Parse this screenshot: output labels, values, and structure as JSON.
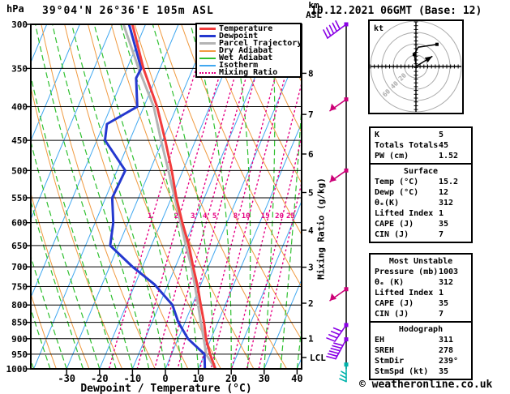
{
  "header": {
    "pressure_unit": "hPa",
    "title": "39°04'N 26°36'E 105m ASL",
    "date": "10.12.2021 06GMT (Base: 12)",
    "alt_unit_1": "km",
    "alt_unit_2": "ASL"
  },
  "legend": {
    "items": [
      {
        "label": "Temperature",
        "color_key": "temperature",
        "dash": "solid",
        "thick": true
      },
      {
        "label": "Dewpoint",
        "color_key": "dewpoint",
        "dash": "solid",
        "thick": true
      },
      {
        "label": "Parcel Trajectory",
        "color_key": "parcel",
        "dash": "solid",
        "thick": true
      },
      {
        "label": "Dry Adiabat",
        "color_key": "dry_adiabat",
        "dash": "solid",
        "thick": false
      },
      {
        "label": "Wet Adiabat",
        "color_key": "wet_adiabat",
        "dash": "solid",
        "thick": false
      },
      {
        "label": "Isotherm",
        "color_key": "isotherm",
        "dash": "solid",
        "thick": false
      },
      {
        "label": "Mixing Ratio",
        "color_key": "mixing_ratio",
        "dash": "dotted",
        "thick": false
      }
    ]
  },
  "axes": {
    "xlabel": "Dewpoint / Temperature (°C)",
    "mixing_axis_label": "Mixing Ratio (g/kg)",
    "lcl_label": "LCL"
  },
  "chart_data": {
    "type": "skewt-logp",
    "pressure_range_hpa": [
      300,
      1000
    ],
    "pressure_ticks_hpa": [
      300,
      350,
      400,
      450,
      500,
      550,
      600,
      650,
      700,
      750,
      800,
      850,
      900,
      950,
      1000
    ],
    "temp_ticks_c": [
      -30,
      -20,
      -10,
      0,
      10,
      20,
      30,
      40
    ],
    "km_asl_ticks": [
      {
        "km": 8,
        "hpa": 356
      },
      {
        "km": 7,
        "hpa": 411
      },
      {
        "km": 6,
        "hpa": 472
      },
      {
        "km": 5,
        "hpa": 540
      },
      {
        "km": 4,
        "hpa": 616
      },
      {
        "km": 3,
        "hpa": 701
      },
      {
        "km": 2,
        "hpa": 795
      },
      {
        "km": 1,
        "hpa": 899
      }
    ],
    "lcl_hpa": 961,
    "mixing_ratio_gkg": [
      1,
      2,
      3,
      4,
      5,
      8,
      10,
      15,
      20,
      25
    ],
    "isotherm_step_c": 10,
    "dry_adiabat_step_k": 10,
    "wet_adiabat_step_c": 5,
    "series": {
      "temperature_c": [
        [
          1000,
          15.2
        ],
        [
          950,
          11.7
        ],
        [
          900,
          8.5
        ],
        [
          850,
          5.8
        ],
        [
          800,
          2.6
        ],
        [
          750,
          -0.7
        ],
        [
          700,
          -4.6
        ],
        [
          650,
          -8.6
        ],
        [
          600,
          -13.5
        ],
        [
          550,
          -18.5
        ],
        [
          500,
          -23.4
        ],
        [
          450,
          -29.2
        ],
        [
          400,
          -36
        ],
        [
          350,
          -45
        ],
        [
          300,
          -54
        ]
      ],
      "dewpoint_c": [
        [
          1000,
          12
        ],
        [
          950,
          10
        ],
        [
          900,
          3
        ],
        [
          850,
          -2
        ],
        [
          800,
          -6
        ],
        [
          745,
          -14
        ],
        [
          700,
          -23
        ],
        [
          650,
          -32.5
        ],
        [
          600,
          -34.5
        ],
        [
          550,
          -38
        ],
        [
          500,
          -37.5
        ],
        [
          450,
          -47.5
        ],
        [
          425,
          -49
        ],
        [
          400,
          -42
        ],
        [
          362,
          -46
        ],
        [
          350,
          -45.7
        ],
        [
          300,
          -55
        ]
      ],
      "parcel_c": [
        [
          1000,
          15.2
        ],
        [
          950,
          10.5
        ],
        [
          900,
          7.8
        ],
        [
          850,
          4.8
        ],
        [
          800,
          1.8
        ],
        [
          750,
          -1.5
        ],
        [
          700,
          -5.1
        ],
        [
          650,
          -9.5
        ],
        [
          600,
          -14
        ],
        [
          550,
          -19
        ],
        [
          500,
          -24.4
        ],
        [
          450,
          -30.5
        ],
        [
          400,
          -37
        ],
        [
          350,
          -46.5
        ],
        [
          300,
          -56.7
        ]
      ]
    },
    "wind_barbs": [
      {
        "hpa": 300,
        "style": "feathers-5",
        "color_key": "barb_violet"
      },
      {
        "hpa": 390,
        "style": "pennant",
        "color_key": "barb_magenta"
      },
      {
        "hpa": 500,
        "style": "pennant",
        "color_key": "barb_magenta"
      },
      {
        "hpa": 757,
        "style": "pennant",
        "color_key": "barb_magenta"
      },
      {
        "hpa": 858,
        "style": "feathers-4",
        "color_key": "barb_violet"
      },
      {
        "hpa": 902,
        "style": "feathers-6",
        "color_key": "barb_violet"
      },
      {
        "hpa": 985,
        "style": "south-3",
        "color_key": "barb_teal"
      }
    ],
    "hodograph": {
      "unit": "kt",
      "rings_kt": [
        20,
        40,
        60
      ],
      "trace_uv_kt": [
        [
          0,
          4
        ],
        [
          -3,
          21
        ],
        [
          4,
          34
        ],
        [
          37,
          39
        ]
      ],
      "markers_uv_kt": [
        [
          -3,
          21
        ],
        [
          37,
          39
        ]
      ],
      "storm_motion_uv_kt": [
        29,
        18
      ]
    }
  },
  "tables": [
    {
      "rows": [
        [
          "K",
          "5"
        ],
        [
          "Totals Totals",
          "45"
        ],
        [
          "PW (cm)",
          "1.52"
        ]
      ]
    },
    {
      "header": "Surface",
      "rows": [
        [
          "Temp (°C)",
          "15.2"
        ],
        [
          "Dewp (°C)",
          "12"
        ],
        [
          "θₑ(K)",
          "312"
        ],
        [
          "Lifted Index",
          "1"
        ],
        [
          "CAPE (J)",
          "35"
        ],
        [
          "CIN (J)",
          "7"
        ]
      ]
    },
    {
      "header": "Most Unstable",
      "rows": [
        [
          "Pressure (mb)",
          "1003"
        ],
        [
          "θₑ (K)",
          "312"
        ],
        [
          "Lifted Index",
          "1"
        ],
        [
          "CAPE (J)",
          "35"
        ],
        [
          "CIN (J)",
          "7"
        ]
      ]
    },
    {
      "header": "Hodograph",
      "rows": [
        [
          "EH",
          "311"
        ],
        [
          "SREH",
          "278"
        ],
        [
          "StmDir",
          "239°"
        ],
        [
          "StmSpd (kt)",
          "35"
        ]
      ]
    }
  ],
  "footer": "© weatheronline.co.uk",
  "colors": {
    "temperature": "#f23c3c",
    "dewpoint": "#2438cf",
    "parcel": "#b4b4b4",
    "dry_adiabat": "#f09a40",
    "wet_adiabat": "#2fc02f",
    "isotherm": "#41a8f0",
    "mixing_ratio": "#e60084",
    "barb_violet": "#8a00e6",
    "barb_magenta": "#cc0077",
    "barb_teal": "#00b3ab",
    "frame": "#000000",
    "ring_gray": "#aaaaaa"
  }
}
